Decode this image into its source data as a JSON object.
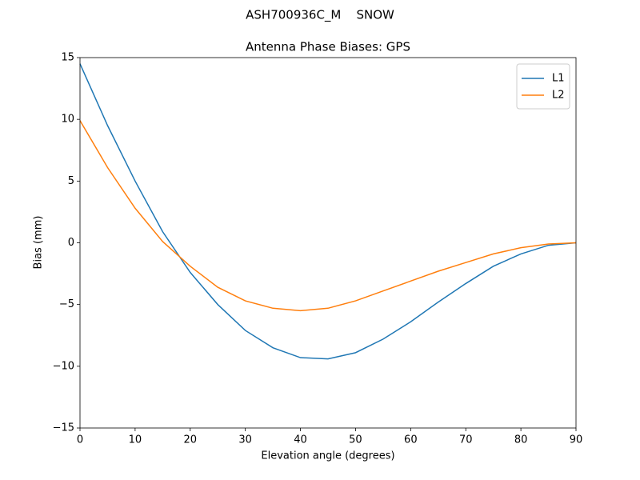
{
  "chart_data": {
    "type": "line",
    "suptitle": "ASH700936C_M    SNOW",
    "title": "Antenna Phase Biases: GPS",
    "xlabel": "Elevation angle (degrees)",
    "ylabel": "Bias (mm)",
    "x": [
      0,
      5,
      10,
      15,
      20,
      25,
      30,
      35,
      40,
      45,
      50,
      55,
      60,
      65,
      70,
      75,
      80,
      85,
      90
    ],
    "series": [
      {
        "name": "L1",
        "color": "#1f77b4",
        "values": [
          14.5,
          9.5,
          5.0,
          0.9,
          -2.4,
          -5.0,
          -7.1,
          -8.5,
          -9.3,
          -9.4,
          -8.9,
          -7.8,
          -6.4,
          -4.8,
          -3.3,
          -1.9,
          -0.9,
          -0.2,
          0
        ]
      },
      {
        "name": "L2",
        "color": "#ff7f0e",
        "values": [
          9.9,
          6.1,
          2.8,
          0.1,
          -1.9,
          -3.6,
          -4.7,
          -5.3,
          -5.5,
          -5.3,
          -4.7,
          -3.9,
          -3.1,
          -2.3,
          -1.6,
          -0.9,
          -0.4,
          -0.1,
          0
        ]
      }
    ],
    "xlim": [
      0,
      90
    ],
    "xticks": [
      0,
      10,
      20,
      30,
      40,
      50,
      60,
      70,
      80,
      90
    ],
    "ylim": [
      -15,
      15
    ],
    "yticks": [
      {
        "value": -15,
        "label": "−15"
      },
      {
        "value": -10,
        "label": "−10"
      },
      {
        "value": -5,
        "label": "−5"
      },
      0,
      5,
      10,
      15
    ],
    "legend": "upper right",
    "grid": false
  }
}
